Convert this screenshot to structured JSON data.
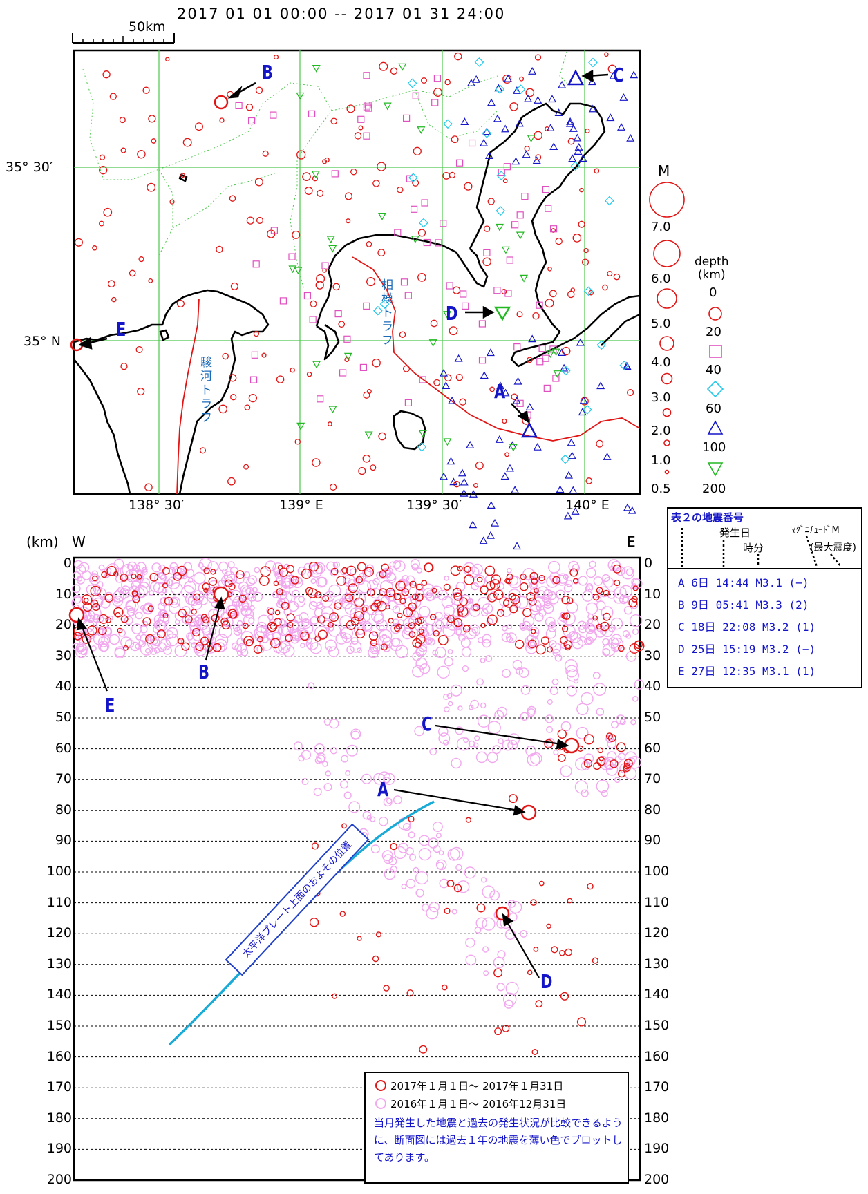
{
  "header": {
    "period": "2017 01 01 00:00 -- 2017 01 31 24:00",
    "scale_label": "50km"
  },
  "map": {
    "lon_ticks": [
      "138° 30′",
      "139° E",
      "139° 30′",
      "140° E"
    ],
    "lat_ticks": [
      "35° 30′",
      "35° N"
    ],
    "trough_labels": {
      "suruga": "駿河トラフ",
      "sagami": "相模トラフ"
    },
    "markers": [
      "A",
      "B",
      "C",
      "D",
      "E"
    ]
  },
  "legend": {
    "mag_title": "M",
    "mag_values": [
      "7.0",
      "6.0",
      "5.0",
      "4.0",
      "3.0",
      "2.0",
      "1.0",
      "0.5"
    ],
    "depth_title": "depth\n(km)",
    "depth_values": [
      "0",
      "20",
      "40",
      "60",
      "100",
      "200"
    ]
  },
  "section": {
    "unit": "(km)",
    "west": "W",
    "east": "E",
    "depths": [
      "0",
      "10",
      "20",
      "30",
      "40",
      "50",
      "60",
      "70",
      "80",
      "90",
      "100",
      "110",
      "120",
      "130",
      "140",
      "150",
      "160",
      "170",
      "180",
      "190",
      "200"
    ],
    "plate_note": "太平洋プレート上面のおよその位置"
  },
  "table": {
    "title": "表２の地震番号",
    "h_date": "発生日",
    "h_time": "時分",
    "h_mag": "ﾏｸﾞﾆﾁｭｰﾄﾞM",
    "h_int": "(最大震度)",
    "rows": [
      {
        "id": "A",
        "day": "6日",
        "time": "14:44",
        "mag": "M3.1",
        "int": "(−)"
      },
      {
        "id": "B",
        "day": "9日",
        "time": "05:41",
        "mag": "M3.3",
        "int": "(2)"
      },
      {
        "id": "C",
        "day": "18日",
        "time": "22:08",
        "mag": "M3.2",
        "int": "(1)"
      },
      {
        "id": "D",
        "day": "25日",
        "time": "15:19",
        "mag": "M3.2",
        "int": "(−)"
      },
      {
        "id": "E",
        "day": "27日",
        "time": "12:35",
        "mag": "M3.1",
        "int": "(1)"
      }
    ]
  },
  "section_legend": {
    "current": "2017年１月１日〜 2017年１月31日",
    "past": "2016年１月１日〜 2016年12月31日",
    "note": "当月発生した地震と過去の発生状況が比較できるように、断面図には過去１年の地震を薄い色でプロットしてあります。"
  },
  "colors": {
    "current": "#e21515",
    "past": "#f2a8ee",
    "grid": "#4ec84e",
    "blue": "#1515c8",
    "cyan": "#22c8e8",
    "magenta": "#e050c0",
    "green": "#22b822"
  }
}
